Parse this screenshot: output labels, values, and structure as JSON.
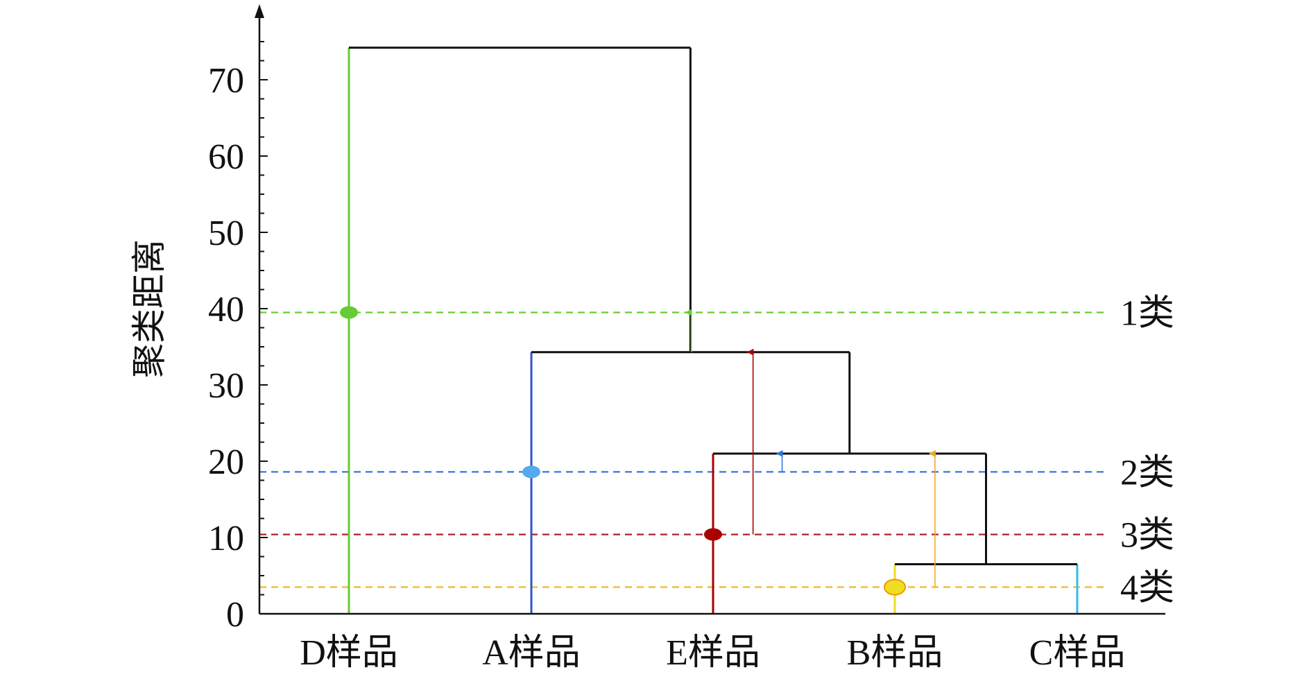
{
  "chart_data": {
    "type": "dendrogram",
    "ylabel": "聚类距离",
    "xlabel": "",
    "ylim": [
      0,
      77
    ],
    "yticks": [
      0,
      10,
      20,
      30,
      40,
      50,
      60,
      70
    ],
    "categories": [
      "D样品",
      "A样品",
      "E样品",
      "B样品",
      "C样品"
    ],
    "merges": [
      {
        "left": "B样品",
        "right": "C样品",
        "height": 6.5
      },
      {
        "left": "E样品",
        "right": "B样品+C样品",
        "height": 21
      },
      {
        "left": "A样品",
        "right": "E样品+B样品+C样品",
        "height": 34.3
      },
      {
        "left": "D样品",
        "right": "A样品+E样品+B样品+C样品",
        "height": 74.2
      }
    ],
    "leaf_colors": {
      "D样品": "#66cc33",
      "A样品": "#3355cc",
      "E样品": "#aa0000",
      "B样品": "#eedd22",
      "C样品": "#33bbee"
    },
    "cut_lines": [
      {
        "label": "1类",
        "height": 39.5,
        "color": "#66cc33"
      },
      {
        "label": "2类",
        "height": 18.6,
        "color": "#3377dd"
      },
      {
        "label": "3类",
        "height": 10.4,
        "color": "#aa2222"
      },
      {
        "label": "4类",
        "height": 3.5,
        "color": "#eebb22"
      }
    ],
    "arrows": [
      {
        "x_between": [
          "A样品",
          "E样品"
        ],
        "from": 34.3,
        "to": 39.5,
        "color": "#66cc33"
      },
      {
        "x_between": [
          "E样品",
          "B样品"
        ],
        "from": 10.4,
        "to": 34.3,
        "color": "#aa0000"
      },
      {
        "x_between": [
          "E样品",
          "B样品"
        ],
        "from": 18.6,
        "to": 21,
        "color": "#3377dd"
      },
      {
        "x_between": [
          "B样品",
          "C样品"
        ],
        "from": 3.5,
        "to": 21,
        "color": "#eeaa22"
      }
    ],
    "markers": [
      {
        "leaf": "D样品",
        "height": 39.5,
        "color": "#66cc33"
      },
      {
        "leaf": "A样品",
        "height": 18.6,
        "color": "#55aaee"
      },
      {
        "leaf": "E样品",
        "height": 10.4,
        "color": "#aa0000"
      },
      {
        "leaf": "B样品",
        "height": 3.5,
        "color": "#eedd22"
      }
    ],
    "grid": false,
    "legend": "none"
  }
}
